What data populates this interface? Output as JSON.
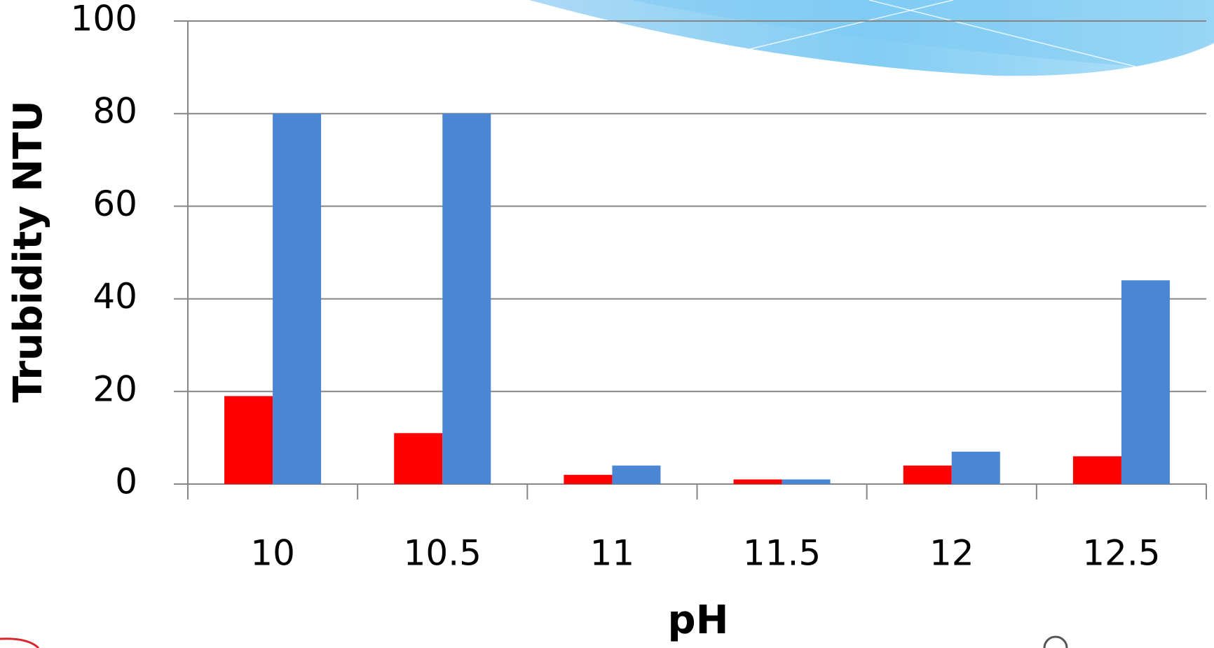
{
  "chart_data": {
    "type": "bar",
    "x_label": "pH",
    "y_label": "Trubidity NTU",
    "categories": [
      "10",
      "10.5",
      "11",
      "11.5",
      "12",
      "12.5"
    ],
    "series": [
      {
        "color": "#ff0000",
        "values": [
          19,
          11,
          2,
          1,
          4,
          6
        ]
      },
      {
        "color": "#4a86d4",
        "values": [
          80,
          80,
          4,
          1,
          7,
          44
        ]
      }
    ],
    "ylim": [
      0,
      100
    ],
    "yticks": [
      0,
      20,
      40,
      60,
      80,
      100
    ],
    "grid": true
  }
}
